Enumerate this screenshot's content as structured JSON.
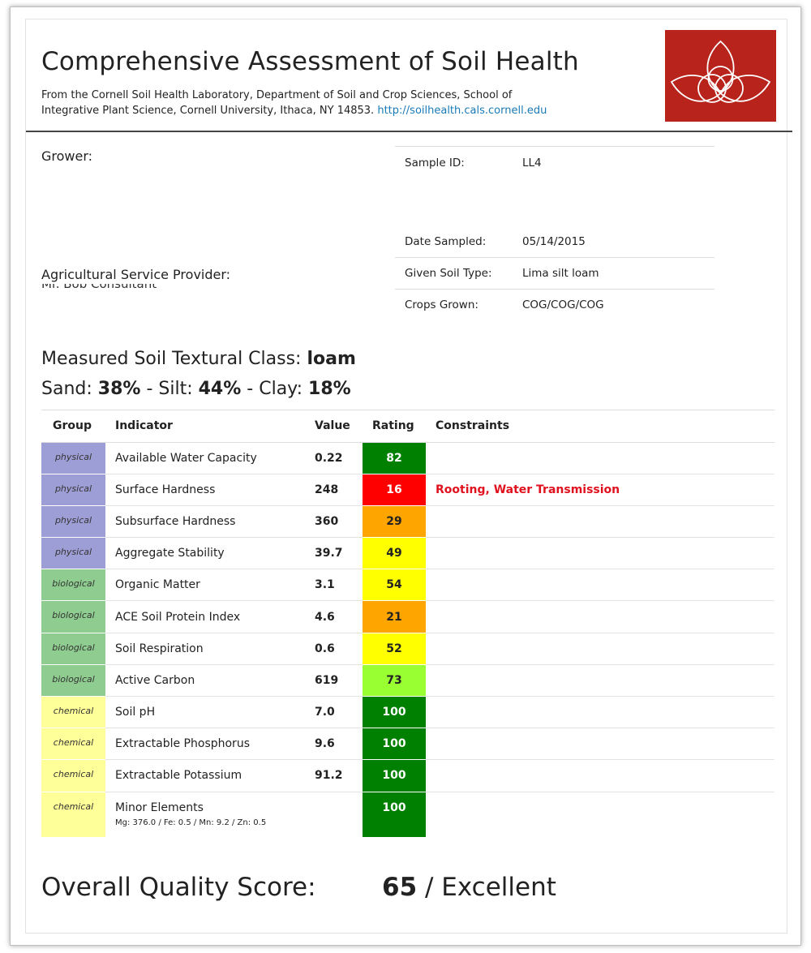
{
  "header": {
    "title": "Comprehensive Assessment of Soil Health",
    "subtitle_line1": "From the Cornell Soil Health Laboratory, Department of Soil and Crop Sciences, School of",
    "subtitle_line2": "Integrative Plant Science, Cornell University, Ithaca, NY 14853.",
    "url": "http://soilhealth.cals.cornell.edu",
    "logo_color": "#b8231c"
  },
  "grower_label": "Grower:",
  "asp_label": "Agricultural Service Provider:",
  "asp_value": "Mr. Bob Consultant",
  "sample_info": [
    {
      "key": "Sample ID:",
      "value": "LL4"
    },
    {
      "key": "Date Sampled:",
      "value": "05/14/2015"
    },
    {
      "key": "Given Soil Type:",
      "value": "Lima silt loam"
    },
    {
      "key": "Crops Grown:",
      "value": "COG/COG/COG"
    }
  ],
  "texture": {
    "label": "Measured Soil Textural Class:",
    "class": "loam",
    "sand_label": "Sand:",
    "sand": "38%",
    "silt_label": "- Silt:",
    "silt": "44%",
    "clay_label": "- Clay:",
    "clay": "18%"
  },
  "table": {
    "headers": [
      "Group",
      "Indicator",
      "Value",
      "Rating",
      "Constraints"
    ],
    "rows": [
      {
        "group": "physical",
        "indicator": "Available Water Capacity",
        "value": "0.22",
        "rating": "82",
        "color": "#008000",
        "text_color": "#ffffff",
        "constraints": ""
      },
      {
        "group": "physical",
        "indicator": "Surface Hardness",
        "value": "248",
        "rating": "16",
        "color": "#ff0000",
        "text_color": "#ffffff",
        "constraints": "Rooting, Water Transmission"
      },
      {
        "group": "physical",
        "indicator": "Subsurface Hardness",
        "value": "360",
        "rating": "29",
        "color": "#ffa500",
        "text_color": "#222222",
        "constraints": ""
      },
      {
        "group": "physical",
        "indicator": "Aggregate Stability",
        "value": "39.7",
        "rating": "49",
        "color": "#ffff00",
        "text_color": "#222222",
        "constraints": ""
      },
      {
        "group": "biological",
        "indicator": "Organic Matter",
        "value": "3.1",
        "rating": "54",
        "color": "#ffff00",
        "text_color": "#222222",
        "constraints": ""
      },
      {
        "group": "biological",
        "indicator": "ACE Soil Protein Index",
        "value": "4.6",
        "rating": "21",
        "color": "#ffa500",
        "text_color": "#222222",
        "constraints": ""
      },
      {
        "group": "biological",
        "indicator": "Soil Respiration",
        "value": "0.6",
        "rating": "52",
        "color": "#ffff00",
        "text_color": "#222222",
        "constraints": ""
      },
      {
        "group": "biological",
        "indicator": "Active Carbon",
        "value": "619",
        "rating": "73",
        "color": "#99ff33",
        "text_color": "#222222",
        "constraints": ""
      },
      {
        "group": "chemical",
        "indicator": "Soil pH",
        "value": "7.0",
        "rating": "100",
        "color": "#008000",
        "text_color": "#ffffff",
        "constraints": ""
      },
      {
        "group": "chemical",
        "indicator": "Extractable Phosphorus",
        "value": "9.6",
        "rating": "100",
        "color": "#008000",
        "text_color": "#ffffff",
        "constraints": ""
      },
      {
        "group": "chemical",
        "indicator": "Extractable Potassium",
        "value": "91.2",
        "rating": "100",
        "color": "#008000",
        "text_color": "#ffffff",
        "constraints": ""
      },
      {
        "group": "chemical",
        "indicator": "Minor Elements",
        "sub": "Mg: 376.0 / Fe: 0.5 / Mn: 9.2 / Zn: 0.5",
        "value": "",
        "rating": "100",
        "color": "#008000",
        "text_color": "#ffffff",
        "constraints": ""
      }
    ]
  },
  "overall": {
    "label": "Overall Quality Score:",
    "score": "65",
    "rating_text": "/ Excellent"
  }
}
